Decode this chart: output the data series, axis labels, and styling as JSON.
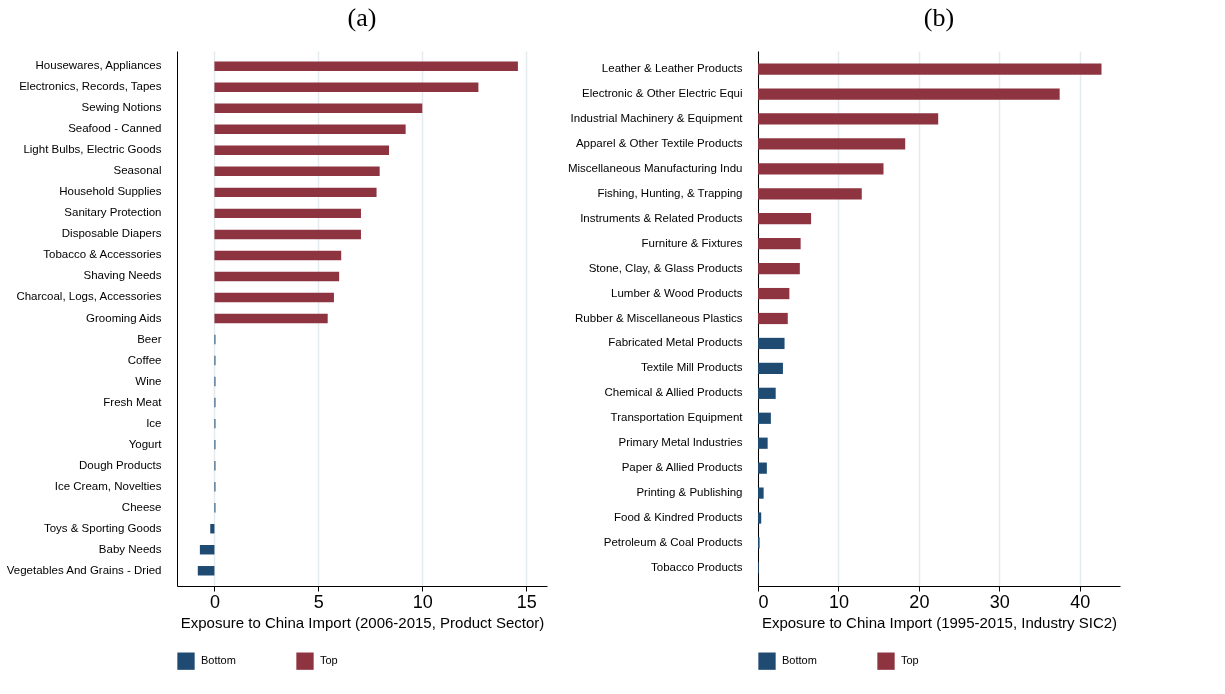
{
  "chart_data": [
    {
      "type": "bar",
      "orientation": "horizontal",
      "title": "(a)",
      "xlabel": "Exposure to China Import (2006-2015, Product Sector)",
      "categories": [
        "Housewares, Appliances",
        "Electronics, Records, Tapes",
        "Sewing Notions",
        "Seafood - Canned",
        "Light Bulbs, Electric Goods",
        "Seasonal",
        "Household Supplies",
        "Sanitary Protection",
        "Disposable Diapers",
        "Tobacco & Accessories",
        "Shaving Needs",
        "Charcoal, Logs, Accessories",
        "Grooming Aids",
        "Beer",
        "Coffee",
        "Wine",
        "Fresh Meat",
        "Ice",
        "Yogurt",
        "Dough Products",
        "Ice Cream, Novelties",
        "Cheese",
        "Toys & Sporting Goods",
        "Baby Needs",
        "Vegetables And Grains - Dried"
      ],
      "series": [
        {
          "name": "Bottom",
          "color": "#1f4a72",
          "values": [
            null,
            null,
            null,
            null,
            null,
            null,
            null,
            null,
            null,
            null,
            null,
            null,
            null,
            0.05,
            0.05,
            0.05,
            0.05,
            0.05,
            0.05,
            0.05,
            0.05,
            0.05,
            -0.2,
            -0.7,
            -0.8
          ]
        },
        {
          "name": "Top",
          "color": "#8e3440",
          "values": [
            14.6,
            12.7,
            10.0,
            9.2,
            8.4,
            7.95,
            7.8,
            7.05,
            7.05,
            6.1,
            6.0,
            5.75,
            5.45,
            null,
            null,
            null,
            null,
            null,
            null,
            null,
            null,
            null,
            null,
            null,
            null
          ]
        }
      ],
      "xlim": [
        -1.8,
        16
      ],
      "xticks": [
        0,
        5,
        10,
        15
      ],
      "grid": "x",
      "legend": "bottom"
    },
    {
      "type": "bar",
      "orientation": "horizontal",
      "title": "(b)",
      "xlabel": "Exposure to China Import (1995-2015, Industry SIC2)",
      "categories": [
        "Leather & Leather Products",
        "Electronic & Other Electric Equi",
        "Industrial Machinery & Equipment",
        "Apparel & Other Textile Products",
        "Miscellaneous Manufacturing Indu",
        "Fishing, Hunting, & Trapping",
        "Instruments & Related Products",
        "Furniture & Fixtures",
        "Stone, Clay, & Glass Products",
        "Lumber & Wood Products",
        "Rubber & Miscellaneous Plastics",
        "Fabricated Metal Products",
        "Textile Mill Products",
        "Chemical & Allied Products",
        "Transportation Equipment",
        "Primary Metal Industries",
        "Paper & Allied Products",
        "Printing & Publishing",
        "Food & Kindred Products",
        "Petroleum & Coal Products",
        "Tobacco Products"
      ],
      "series": [
        {
          "name": "Bottom",
          "color": "#1f4a72",
          "values": [
            null,
            null,
            null,
            null,
            null,
            null,
            null,
            null,
            null,
            null,
            null,
            3.3,
            3.1,
            2.2,
            1.6,
            1.2,
            1.1,
            0.7,
            0.4,
            0.2,
            0.1
          ]
        },
        {
          "name": "Top",
          "color": "#8e3440",
          "values": [
            42.7,
            37.5,
            22.4,
            18.3,
            15.6,
            12.9,
            6.6,
            5.3,
            5.2,
            3.9,
            3.7,
            null,
            null,
            null,
            null,
            null,
            null,
            null,
            null,
            null,
            null
          ]
        }
      ],
      "xlim": [
        0,
        45
      ],
      "xticks": [
        0,
        10,
        20,
        30,
        40
      ],
      "grid": "x",
      "legend": "bottom"
    }
  ]
}
